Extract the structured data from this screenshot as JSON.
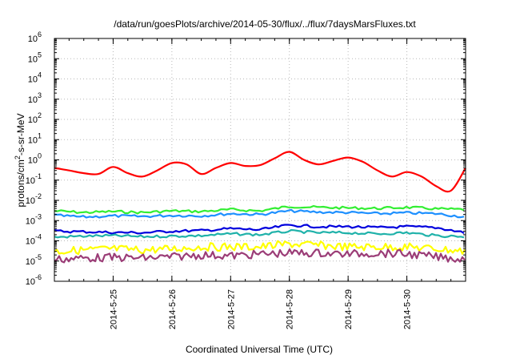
{
  "chart_data": {
    "type": "line",
    "title": "/data/run/goesPlots/archive/2014-05-30/flux/../flux/7daysMarsFluxes.txt",
    "xlabel": "Coordinated Universal Time (UTC)",
    "ylabel": {
      "prefix": "protons/cm",
      "sup": "2",
      "suffix": "-s-sr-MeV"
    },
    "y_scale": "log",
    "ylim": [
      1e-06,
      1000000.0
    ],
    "y_ticks": [
      {
        "base": "10",
        "exp": "-6",
        "value": 1e-06
      },
      {
        "base": "10",
        "exp": "-5",
        "value": 1e-05
      },
      {
        "base": "10",
        "exp": "-4",
        "value": 0.0001
      },
      {
        "base": "10",
        "exp": "-3",
        "value": 0.001
      },
      {
        "base": "10",
        "exp": "-2",
        "value": 0.01
      },
      {
        "base": "10",
        "exp": "-1",
        "value": 0.1
      },
      {
        "base": "10",
        "exp": "0",
        "value": 1
      },
      {
        "base": "10",
        "exp": "1",
        "value": 10.0
      },
      {
        "base": "10",
        "exp": "2",
        "value": 100.0
      },
      {
        "base": "10",
        "exp": "3",
        "value": 1000.0
      },
      {
        "base": "10",
        "exp": "4",
        "value": 10000.0
      },
      {
        "base": "10",
        "exp": "5",
        "value": 100000.0
      },
      {
        "base": "10",
        "exp": "6",
        "value": 1000000.0
      }
    ],
    "xlim": [
      "2014-05-24 00:00",
      "2014-05-31 00:00"
    ],
    "x_ticks": [
      {
        "label": "2014-5-25",
        "value": "2014-05-25"
      },
      {
        "label": "2014-5-26",
        "value": "2014-05-26"
      },
      {
        "label": "2014-5-27",
        "value": "2014-05-27"
      },
      {
        "label": "2014-5-28",
        "value": "2014-05-28"
      },
      {
        "label": "2014-5-29",
        "value": "2014-05-29"
      },
      {
        "label": "2014-5-30",
        "value": "2014-05-30"
      }
    ],
    "grid": true,
    "series": [
      {
        "color": "#ff0000",
        "style": "smooth",
        "x": [
          "2014-05-24 00:00",
          "2014-05-24 06:00",
          "2014-05-24 12:00",
          "2014-05-24 18:00",
          "2014-05-25 00:00",
          "2014-05-25 06:00",
          "2014-05-25 12:00",
          "2014-05-25 18:00",
          "2014-05-26 00:00",
          "2014-05-26 06:00",
          "2014-05-26 12:00",
          "2014-05-26 18:00",
          "2014-05-27 00:00",
          "2014-05-27 06:00",
          "2014-05-27 12:00",
          "2014-05-27 18:00",
          "2014-05-28 00:00",
          "2014-05-28 06:00",
          "2014-05-28 12:00",
          "2014-05-28 18:00",
          "2014-05-29 00:00",
          "2014-05-29 06:00",
          "2014-05-29 12:00",
          "2014-05-29 18:00",
          "2014-05-30 00:00",
          "2014-05-30 06:00",
          "2014-05-30 12:00",
          "2014-05-30 18:00",
          "2014-05-31 00:00"
        ],
        "values": [
          0.4,
          0.3,
          0.22,
          0.2,
          0.45,
          0.22,
          0.15,
          0.3,
          0.7,
          0.6,
          0.2,
          0.4,
          0.7,
          0.5,
          0.55,
          1.2,
          2.5,
          1.0,
          0.6,
          0.9,
          1.3,
          0.8,
          0.3,
          0.15,
          0.25,
          0.15,
          0.05,
          0.03,
          0.4
        ]
      },
      {
        "color": "#33ee33",
        "style": "wiggly",
        "x": [
          "2014-05-24 00:00",
          "2014-05-24 12:00",
          "2014-05-25 00:00",
          "2014-05-25 12:00",
          "2014-05-26 00:00",
          "2014-05-26 12:00",
          "2014-05-27 00:00",
          "2014-05-27 12:00",
          "2014-05-28 00:00",
          "2014-05-28 12:00",
          "2014-05-29 00:00",
          "2014-05-29 12:00",
          "2014-05-30 00:00",
          "2014-05-30 12:00",
          "2014-05-31 00:00"
        ],
        "values": [
          0.003,
          0.0025,
          0.0028,
          0.0025,
          0.003,
          0.0028,
          0.0035,
          0.003,
          0.005,
          0.0045,
          0.0042,
          0.004,
          0.0045,
          0.0038,
          0.0035
        ]
      },
      {
        "color": "#1e90ff",
        "style": "wiggly",
        "x": [
          "2014-05-24 00:00",
          "2014-05-24 12:00",
          "2014-05-25 00:00",
          "2014-05-25 12:00",
          "2014-05-26 00:00",
          "2014-05-26 12:00",
          "2014-05-27 00:00",
          "2014-05-27 12:00",
          "2014-05-28 00:00",
          "2014-05-28 12:00",
          "2014-05-29 00:00",
          "2014-05-29 12:00",
          "2014-05-30 00:00",
          "2014-05-30 12:00",
          "2014-05-31 00:00"
        ],
        "values": [
          0.0018,
          0.0015,
          0.0017,
          0.0016,
          0.0018,
          0.0017,
          0.0022,
          0.002,
          0.003,
          0.0026,
          0.0025,
          0.0022,
          0.0024,
          0.0022,
          0.0015
        ]
      },
      {
        "color": "#0000dd",
        "style": "wiggly",
        "x": [
          "2014-05-24 00:00",
          "2014-05-24 12:00",
          "2014-05-25 00:00",
          "2014-05-25 12:00",
          "2014-05-26 00:00",
          "2014-05-26 12:00",
          "2014-05-27 00:00",
          "2014-05-27 12:00",
          "2014-05-28 00:00",
          "2014-05-28 12:00",
          "2014-05-29 00:00",
          "2014-05-29 12:00",
          "2014-05-30 00:00",
          "2014-05-30 12:00",
          "2014-05-31 00:00"
        ],
        "values": [
          0.0003,
          0.00028,
          0.00026,
          0.00025,
          0.0003,
          0.00032,
          0.0004,
          0.00035,
          0.0006,
          0.0005,
          0.0005,
          0.00045,
          0.0005,
          0.00045,
          0.00025
        ]
      },
      {
        "color": "#20b2aa",
        "style": "wiggly",
        "x": [
          "2014-05-24 00:00",
          "2014-05-24 12:00",
          "2014-05-25 00:00",
          "2014-05-25 12:00",
          "2014-05-26 00:00",
          "2014-05-26 12:00",
          "2014-05-27 00:00",
          "2014-05-27 12:00",
          "2014-05-28 00:00",
          "2014-05-28 12:00",
          "2014-05-29 00:00",
          "2014-05-29 12:00",
          "2014-05-30 00:00",
          "2014-05-30 12:00",
          "2014-05-31 00:00"
        ],
        "values": [
          0.00015,
          0.00017,
          0.00018,
          0.00016,
          0.00017,
          0.00018,
          0.00022,
          0.0002,
          0.0003,
          0.00025,
          0.00025,
          0.00022,
          0.00025,
          0.00018,
          0.00016
        ]
      },
      {
        "color": "#ffff00",
        "style": "noisy",
        "x": [
          "2014-05-24 00:00",
          "2014-05-24 12:00",
          "2014-05-25 00:00",
          "2014-05-25 12:00",
          "2014-05-26 00:00",
          "2014-05-26 12:00",
          "2014-05-27 00:00",
          "2014-05-27 12:00",
          "2014-05-28 00:00",
          "2014-05-28 12:00",
          "2014-05-29 00:00",
          "2014-05-29 12:00",
          "2014-05-30 00:00",
          "2014-05-30 12:00",
          "2014-05-31 00:00"
        ],
        "values": [
          3e-05,
          3.5e-05,
          4e-05,
          3.5e-05,
          4e-05,
          5e-05,
          5e-05,
          5e-05,
          7e-05,
          6e-05,
          5e-05,
          5e-05,
          5e-05,
          4e-05,
          3e-05
        ]
      },
      {
        "color": "#9b3d77",
        "style": "noisy",
        "x": [
          "2014-05-24 00:00",
          "2014-05-24 12:00",
          "2014-05-25 00:00",
          "2014-05-25 12:00",
          "2014-05-26 00:00",
          "2014-05-26 12:00",
          "2014-05-27 00:00",
          "2014-05-27 12:00",
          "2014-05-28 00:00",
          "2014-05-28 12:00",
          "2014-05-29 00:00",
          "2014-05-29 12:00",
          "2014-05-30 00:00",
          "2014-05-30 12:00",
          "2014-05-31 00:00"
        ],
        "values": [
          1.2e-05,
          1.4e-05,
          1.5e-05,
          1.4e-05,
          1.6e-05,
          2e-05,
          1.8e-05,
          2.2e-05,
          2.5e-05,
          2.5e-05,
          2.2e-05,
          2.5e-05,
          2.2e-05,
          1.6e-05,
          1.2e-05
        ]
      }
    ]
  }
}
